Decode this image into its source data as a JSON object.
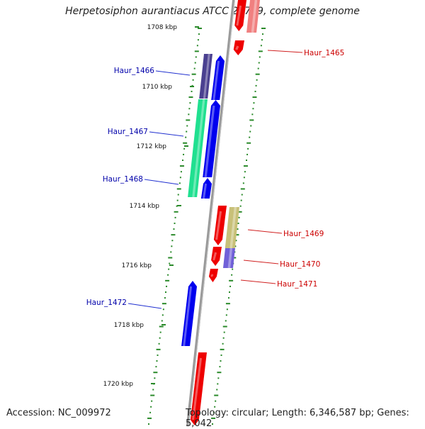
{
  "title": "Herpetosiphon aurantiacus ATCC 23779, complete genome",
  "accession": "Accession: NC_009972",
  "summary": "Topology: circular; Length: 6,346,587 bp; Genes: 5,042",
  "colors": {
    "forward": "#0000ee",
    "reverse": "#ee0000",
    "label_forward": "#0000aa",
    "label_reverse": "#cc0000",
    "ruler_dots": "#2a8a2a",
    "backbone": "#8a8a8a"
  },
  "ruler": [
    {
      "label": "1708 kbp"
    },
    {
      "label": "1710 kbp"
    },
    {
      "label": "1712 kbp"
    },
    {
      "label": "1714 kbp"
    },
    {
      "label": "1716 kbp"
    },
    {
      "label": "1718 kbp"
    },
    {
      "label": "1720 kbp"
    }
  ],
  "genes": [
    {
      "name": "Haur_1465",
      "strand": "reverse"
    },
    {
      "name": "Haur_1466",
      "strand": "forward"
    },
    {
      "name": "Haur_1467",
      "strand": "forward"
    },
    {
      "name": "Haur_1468",
      "strand": "forward"
    },
    {
      "name": "Haur_1469",
      "strand": "reverse"
    },
    {
      "name": "Haur_1470",
      "strand": "reverse"
    },
    {
      "name": "Haur_1471",
      "strand": "reverse"
    },
    {
      "name": "Haur_1472",
      "strand": "forward"
    }
  ]
}
